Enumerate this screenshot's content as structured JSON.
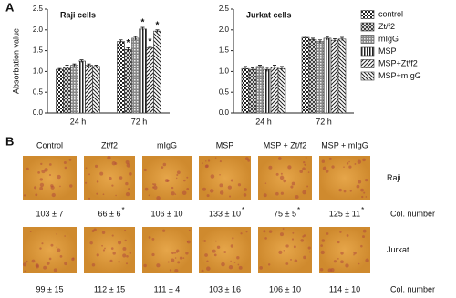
{
  "panel_labels": [
    "A",
    "B"
  ],
  "chart_data": [
    {
      "type": "bar",
      "title": "Raji cells",
      "ylabel": "Absorbation value",
      "categories": [
        "24 h",
        "72 h"
      ],
      "ylim": [
        0,
        2.5
      ],
      "yticks": [
        {
          "value": 0,
          "label": "0.0"
        },
        0.5,
        {
          "value": 1,
          "label": "1.0"
        },
        1.5,
        {
          "value": 2,
          "label": "2.0"
        },
        2.5
      ],
      "series": [
        {
          "name": "control",
          "pattern": "checker",
          "color": "#333333",
          "values": [
            1.05,
            1.72
          ],
          "errors": [
            0.02,
            0.04
          ],
          "markers": [
            null,
            null
          ]
        },
        {
          "name": "Zt/f2",
          "pattern": "dots",
          "color": "#333333",
          "values": [
            1.1,
            1.53
          ],
          "errors": [
            0.05,
            0.04
          ],
          "markers": [
            null,
            "*"
          ]
        },
        {
          "name": "mIgG",
          "pattern": "dense",
          "color": "#444444",
          "values": [
            1.15,
            1.8
          ],
          "errors": [
            0.03,
            0.04
          ],
          "markers": [
            null,
            null
          ]
        },
        {
          "name": "MSP",
          "pattern": "vertical",
          "color": "#333333",
          "values": [
            1.25,
            2.02
          ],
          "errors": [
            0.03,
            0.04
          ],
          "markers": [
            null,
            "*"
          ]
        },
        {
          "name": "MSP+Zt/f2",
          "pattern": "diagonal",
          "color": "#333333",
          "values": [
            1.15,
            1.57
          ],
          "errors": [
            0.03,
            0.03
          ],
          "markers": [
            null,
            "*"
          ]
        },
        {
          "name": "MSP+mIgG",
          "pattern": "backdiagonal",
          "color": "#333333",
          "values": [
            1.12,
            1.97
          ],
          "errors": [
            0.03,
            0.03
          ],
          "markers": [
            null,
            "*"
          ]
        }
      ]
    },
    {
      "type": "bar",
      "title": "Jurkat cells",
      "categories": [
        "24 h",
        "72 h"
      ],
      "ylim": [
        0,
        2.5
      ],
      "yticks": [
        {
          "value": 0,
          "label": "0.0"
        },
        0.5,
        {
          "value": 1,
          "label": "1.0"
        },
        1.5,
        {
          "value": 2,
          "label": "2.0"
        },
        2.5
      ],
      "series": [
        {
          "pattern": "checker",
          "color": "#333333",
          "values": [
            1.07,
            1.82
          ],
          "errors": [
            0.05,
            0.03
          ]
        },
        {
          "pattern": "dots",
          "color": "#333333",
          "values": [
            1.05,
            1.77
          ],
          "errors": [
            0.04,
            0.03
          ]
        },
        {
          "pattern": "dense",
          "color": "#444444",
          "values": [
            1.12,
            1.72
          ],
          "errors": [
            0.03,
            0.04
          ]
        },
        {
          "pattern": "vertical",
          "color": "#333333",
          "values": [
            1.05,
            1.8
          ],
          "errors": [
            0.05,
            0.04
          ]
        },
        {
          "pattern": "diagonal",
          "color": "#333333",
          "values": [
            1.1,
            1.75
          ],
          "errors": [
            0.05,
            0.04
          ]
        },
        {
          "pattern": "backdiagonal",
          "color": "#333333",
          "values": [
            1.07,
            1.78
          ],
          "errors": [
            0.05,
            0.04
          ]
        }
      ]
    }
  ],
  "images": {
    "columns": [
      "Control",
      "Zt/f2",
      "mIgG",
      "MSP",
      "MSP + Zt/f2",
      "MSP + mIgG"
    ],
    "count_label": "Col. number",
    "rows": [
      {
        "label": "Raji",
        "counts": [
          "103 ± 7",
          "66 ± 6",
          "106 ± 10",
          "133 ± 10",
          "75 ± 5",
          "125 ± 11"
        ],
        "stars": [
          null,
          "*",
          null,
          "*",
          "*",
          "*"
        ]
      },
      {
        "label": "Jurkat",
        "counts": [
          "99 ± 15",
          "112 ± 15",
          "111 ± 4",
          "103 ± 16",
          "106 ± 10",
          "114 ± 10"
        ],
        "stars": [
          null,
          null,
          null,
          null,
          null,
          null
        ]
      }
    ]
  }
}
